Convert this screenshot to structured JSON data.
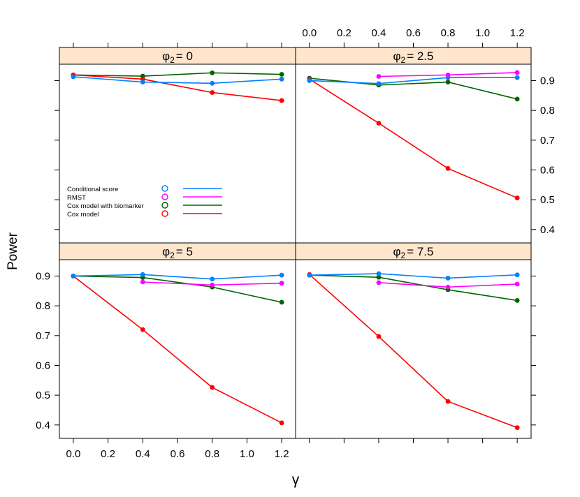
{
  "chart_data": {
    "type": "line",
    "xlabel": "γ",
    "ylabel": "Power",
    "x": [
      0.0,
      0.4,
      0.8,
      1.2
    ],
    "xlim": [
      -0.08,
      1.28
    ],
    "ylim": [
      0.355,
      0.955
    ],
    "x_ticks": [
      "0.0",
      "0.2",
      "0.4",
      "0.6",
      "0.8",
      "1.0",
      "1.2"
    ],
    "y_ticks": [
      "0.4",
      "0.5",
      "0.6",
      "0.7",
      "0.8",
      "0.9"
    ],
    "strip_color": "#ffe5cc",
    "legend": {
      "placement": "inside top-left panel",
      "entries": [
        {
          "label": "Conditional score",
          "color": "#0080ff"
        },
        {
          "label": "RMST",
          "color": "#ff00ff"
        },
        {
          "label": "Cox model with biomarker",
          "color": "#006400"
        },
        {
          "label": "Cox model",
          "color": "#ff0000"
        }
      ]
    },
    "panels": [
      {
        "strip_symbol": "φ",
        "strip_sub": "2",
        "strip_value": "= 0",
        "series": [
          {
            "name": "Cox model with biomarker",
            "color": "#006400",
            "values": [
              0.919,
              0.915,
              0.926,
              0.921
            ]
          },
          {
            "name": "Cox model",
            "color": "#ff0000",
            "values": [
              0.919,
              0.905,
              0.86,
              0.833
            ]
          },
          {
            "name": "Conditional score",
            "color": "#0080ff",
            "values": [
              0.913,
              0.895,
              0.891,
              0.905
            ]
          }
        ]
      },
      {
        "strip_symbol": "φ",
        "strip_sub": "2",
        "strip_value": "= 2.5",
        "series": [
          {
            "name": "Cox model with biomarker",
            "color": "#006400",
            "values": [
              0.908,
              0.885,
              0.895,
              0.838
            ]
          },
          {
            "name": "Cox model",
            "color": "#ff0000",
            "values": [
              0.905,
              0.757,
              0.605,
              0.506
            ]
          },
          {
            "name": "Conditional score",
            "color": "#0080ff",
            "values": [
              0.9,
              0.89,
              0.91,
              0.91
            ]
          },
          {
            "name": "RMST",
            "color": "#ff00ff",
            "values": [
              null,
              0.914,
              0.919,
              0.927
            ]
          }
        ]
      },
      {
        "strip_symbol": "φ",
        "strip_sub": "2",
        "strip_value": "= 5",
        "series": [
          {
            "name": "Cox model with biomarker",
            "color": "#006400",
            "values": [
              0.9,
              0.895,
              0.863,
              0.812
            ]
          },
          {
            "name": "Cox model",
            "color": "#ff0000",
            "values": [
              0.9,
              0.72,
              0.526,
              0.407
            ]
          },
          {
            "name": "Conditional score",
            "color": "#0080ff",
            "values": [
              0.9,
              0.905,
              0.89,
              0.903
            ]
          },
          {
            "name": "RMST",
            "color": "#ff00ff",
            "values": [
              null,
              0.88,
              0.87,
              0.876
            ]
          }
        ]
      },
      {
        "strip_symbol": "φ",
        "strip_sub": "2",
        "strip_value": "= 7.5",
        "series": [
          {
            "name": "Cox model with biomarker",
            "color": "#006400",
            "values": [
              0.903,
              0.896,
              0.854,
              0.818
            ]
          },
          {
            "name": "Cox model",
            "color": "#ff0000",
            "values": [
              0.905,
              0.697,
              0.479,
              0.391
            ]
          },
          {
            "name": "Conditional score",
            "color": "#0080ff",
            "values": [
              0.903,
              0.908,
              0.893,
              0.904
            ]
          },
          {
            "name": "RMST",
            "color": "#ff00ff",
            "values": [
              null,
              0.878,
              0.863,
              0.873
            ]
          }
        ]
      }
    ]
  }
}
